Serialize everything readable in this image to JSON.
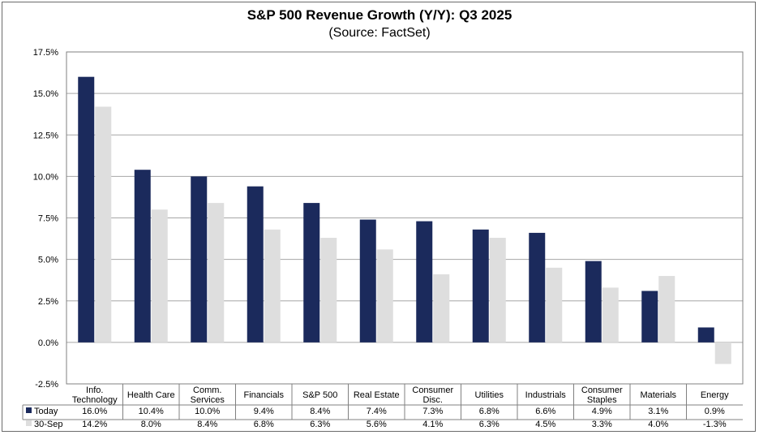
{
  "colors": {
    "today": "#1b2a5c",
    "sep30": "#dedede",
    "grid": "#a6a6a6",
    "text": "#000000"
  },
  "chart_data": {
    "type": "bar",
    "title": "S&P 500 Revenue Growth (Y/Y): Q3 2025",
    "subtitle": "(Source: FactSet)",
    "categories": [
      [
        "Info.",
        "Technology"
      ],
      [
        "Health Care"
      ],
      [
        "Comm.",
        "Services"
      ],
      [
        "Financials"
      ],
      [
        "S&P 500"
      ],
      [
        "Real Estate"
      ],
      [
        "Consumer",
        "Disc."
      ],
      [
        "Utilities"
      ],
      [
        "Industrials"
      ],
      [
        "Consumer",
        "Staples"
      ],
      [
        "Materials"
      ],
      [
        "Energy"
      ]
    ],
    "series": [
      {
        "name": "Today",
        "values": [
          16.0,
          10.4,
          10.0,
          9.4,
          8.4,
          7.4,
          7.3,
          6.8,
          6.6,
          4.9,
          3.1,
          0.9
        ],
        "labels": [
          "16.0%",
          "10.4%",
          "10.0%",
          "9.4%",
          "8.4%",
          "7.4%",
          "7.3%",
          "6.8%",
          "6.6%",
          "4.9%",
          "3.1%",
          "0.9%"
        ]
      },
      {
        "name": "30-Sep",
        "values": [
          14.2,
          8.0,
          8.4,
          6.8,
          6.3,
          5.6,
          4.1,
          6.3,
          4.5,
          3.3,
          4.0,
          -1.3
        ],
        "labels": [
          "14.2%",
          "8.0%",
          "8.4%",
          "6.8%",
          "6.3%",
          "5.6%",
          "4.1%",
          "6.3%",
          "4.5%",
          "3.3%",
          "4.0%",
          "-1.3%"
        ]
      }
    ],
    "ylim": [
      -2.5,
      17.5
    ],
    "yticks": [
      17.5,
      15.0,
      12.5,
      10.0,
      7.5,
      5.0,
      2.5,
      0.0,
      -2.5
    ],
    "ytick_labels": [
      "17.5%",
      "15.0%",
      "12.5%",
      "10.0%",
      "7.5%",
      "5.0%",
      "2.5%",
      "0.0%",
      "-2.5%"
    ],
    "grid": true,
    "legend": "data-table"
  }
}
